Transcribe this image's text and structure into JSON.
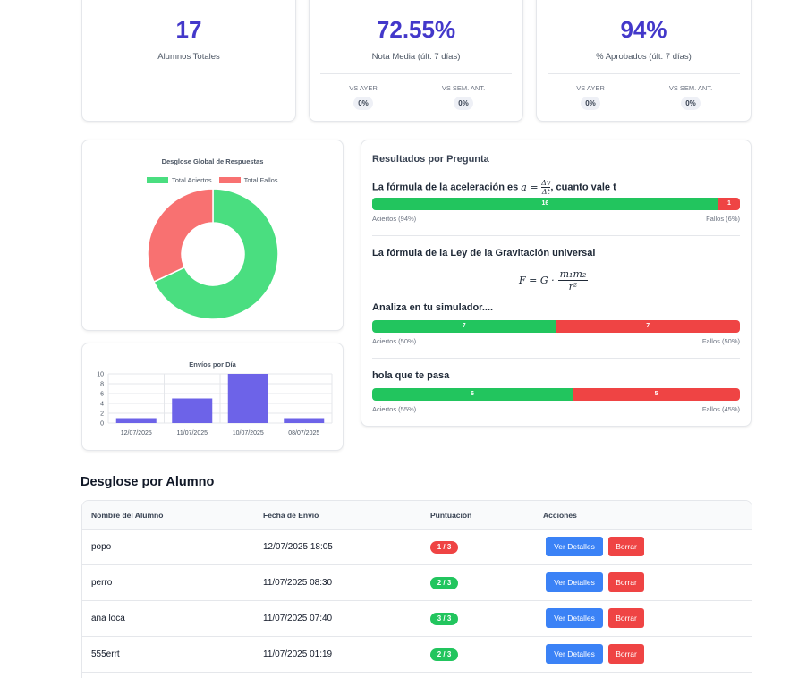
{
  "stats": [
    {
      "value": "17",
      "label": "Alumnos Totales"
    },
    {
      "value": "72.55%",
      "label": "Nota Media (últ. 7 días)",
      "cmp": [
        {
          "label": "VS AYER",
          "value": "0%"
        },
        {
          "label": "VS SEM. ANT.",
          "value": "0%"
        }
      ]
    },
    {
      "value": "94%",
      "label": "% Aprobados (últ. 7 días)",
      "cmp": [
        {
          "label": "VS AYER",
          "value": "0%"
        },
        {
          "label": "VS SEM. ANT.",
          "value": "0%"
        }
      ]
    }
  ],
  "colors": {
    "accent": "#4338ca",
    "success": "#22c55e",
    "danger": "#ef4444",
    "primary": "#3b82f6",
    "bar": "#6d63e8",
    "donut_ok": "#4ade80",
    "donut_bad": "#f87171"
  },
  "chart_data": [
    {
      "type": "pie",
      "title": "Desglose Global de Respuestas",
      "legend_position": "top",
      "categories": [
        "Total Aciertos",
        "Total Fallos"
      ],
      "values": [
        34,
        16
      ]
    },
    {
      "type": "bar",
      "title": "Envíos por Día",
      "categories": [
        "12/07/2025",
        "11/07/2025",
        "10/07/2025",
        "08/07/2025"
      ],
      "values": [
        1,
        5,
        10,
        1
      ],
      "ylim": [
        0,
        10
      ],
      "yticks": [
        0,
        2,
        4,
        6,
        8,
        10
      ],
      "grid": true
    }
  ],
  "questions": {
    "title": "Resultados por Pregunta",
    "items": [
      {
        "title_prefix": "La fórmula de la aceleración es ",
        "math_a": "a",
        "math_num": "Δv",
        "math_den": "Δt",
        "title_suffix": ", cuanto vale t",
        "ok": 16,
        "bad": 1,
        "ok_label": "16",
        "bad_label": "1",
        "ok_caption": "Aciertos (94%)",
        "bad_caption": "Fallos (6%)"
      },
      {
        "title": "La fórmula de la Ley de la Gravitación universal",
        "formula": {
          "lhs": "F = G ·",
          "num": "m₁m₂",
          "den": "r²"
        }
      },
      {
        "title": "Analiza en tu simulador....",
        "ok": 7,
        "bad": 7,
        "ok_label": "7",
        "bad_label": "7",
        "ok_caption": "Aciertos (50%)",
        "bad_caption": "Fallos (50%)"
      },
      {
        "title": "hola que te pasa",
        "ok": 6,
        "bad": 5,
        "ok_label": "6",
        "bad_label": "5",
        "ok_caption": "Aciertos (55%)",
        "bad_caption": "Fallos (45%)"
      }
    ]
  },
  "students": {
    "title": "Desglose por Alumno",
    "headers": [
      "Nombre del Alumno",
      "Fecha de Envío",
      "Puntuación",
      "Acciones"
    ],
    "details_label": "Ver Detalles",
    "delete_label": "Borrar",
    "rows": [
      {
        "name": "popo",
        "date": "12/07/2025 18:05",
        "score": "1 / 3",
        "status": "fail"
      },
      {
        "name": "perro",
        "date": "11/07/2025 08:30",
        "score": "2 / 3",
        "status": "pass"
      },
      {
        "name": "ana loca",
        "date": "11/07/2025 07:40",
        "score": "3 / 3",
        "status": "pass"
      },
      {
        "name": "555errt",
        "date": "11/07/2025 01:19",
        "score": "2 / 3",
        "status": "pass"
      }
    ]
  }
}
